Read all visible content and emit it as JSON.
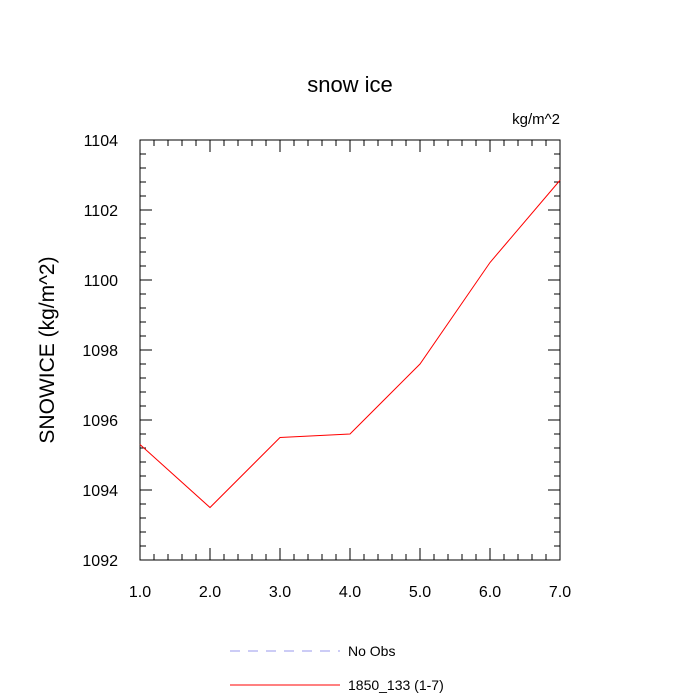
{
  "chart_data": {
    "type": "line",
    "title": "snow ice",
    "units_label": "kg/m^2",
    "ylabel": "SNOWICE  (kg/m^2)",
    "xlabel": "",
    "xlim": [
      1,
      7
    ],
    "ylim": [
      1092,
      1104
    ],
    "x_ticks": [
      1,
      2,
      3,
      4,
      5,
      6,
      7
    ],
    "x_tick_labels": [
      "1.0",
      "2.0",
      "3.0",
      "4.0",
      "5.0",
      "6.0",
      "7.0"
    ],
    "y_ticks": [
      1092,
      1094,
      1096,
      1098,
      1100,
      1102,
      1104
    ],
    "y_tick_labels": [
      "1092",
      "1094",
      "1096",
      "1098",
      "1100",
      "1102",
      "1104"
    ],
    "grid": false,
    "legend_position": "bottom-center",
    "series": [
      {
        "name": "1850_133 (1-7)",
        "color": "#ff0000",
        "style": "solid",
        "x": [
          1,
          2,
          3,
          4,
          5,
          6,
          7
        ],
        "values": [
          1095.3,
          1093.5,
          1095.5,
          1095.6,
          1097.6,
          1100.5,
          1102.85
        ]
      }
    ],
    "legend": [
      {
        "label": "No Obs",
        "color": "#9a9aee",
        "style": "dashed"
      },
      {
        "label": "1850_133 (1-7)",
        "color": "#ff0000",
        "style": "solid"
      }
    ]
  }
}
